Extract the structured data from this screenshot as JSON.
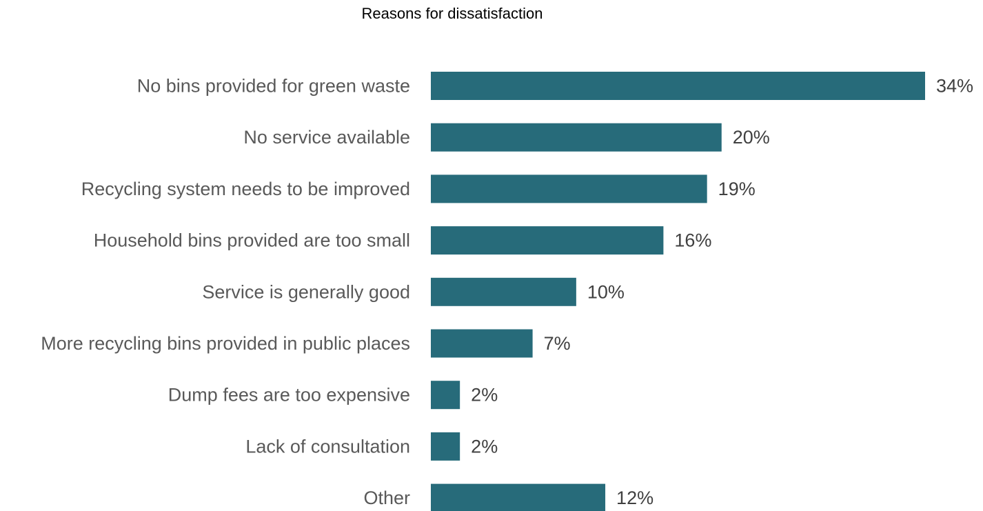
{
  "chart_data": {
    "type": "bar",
    "orientation": "horizontal",
    "title": "Reasons for dissatisfaction",
    "categories": [
      "No bins provided for green waste",
      "No service available",
      "Recycling system needs to be improved",
      "Household bins provided are too small",
      "Service is generally good",
      "More recycling bins provided in public places",
      "Dump fees are too expensive",
      "Lack of consultation",
      "Other"
    ],
    "values": [
      34,
      20,
      19,
      16,
      10,
      7,
      2,
      2,
      12
    ],
    "value_labels": [
      "34%",
      "20%",
      "19%",
      "16%",
      "10%",
      "7%",
      "2%",
      "2%",
      "12%"
    ],
    "unit": "%",
    "xlim": [
      0,
      34
    ],
    "grid": false,
    "legend": "none",
    "bar_color": "#276b7a"
  }
}
